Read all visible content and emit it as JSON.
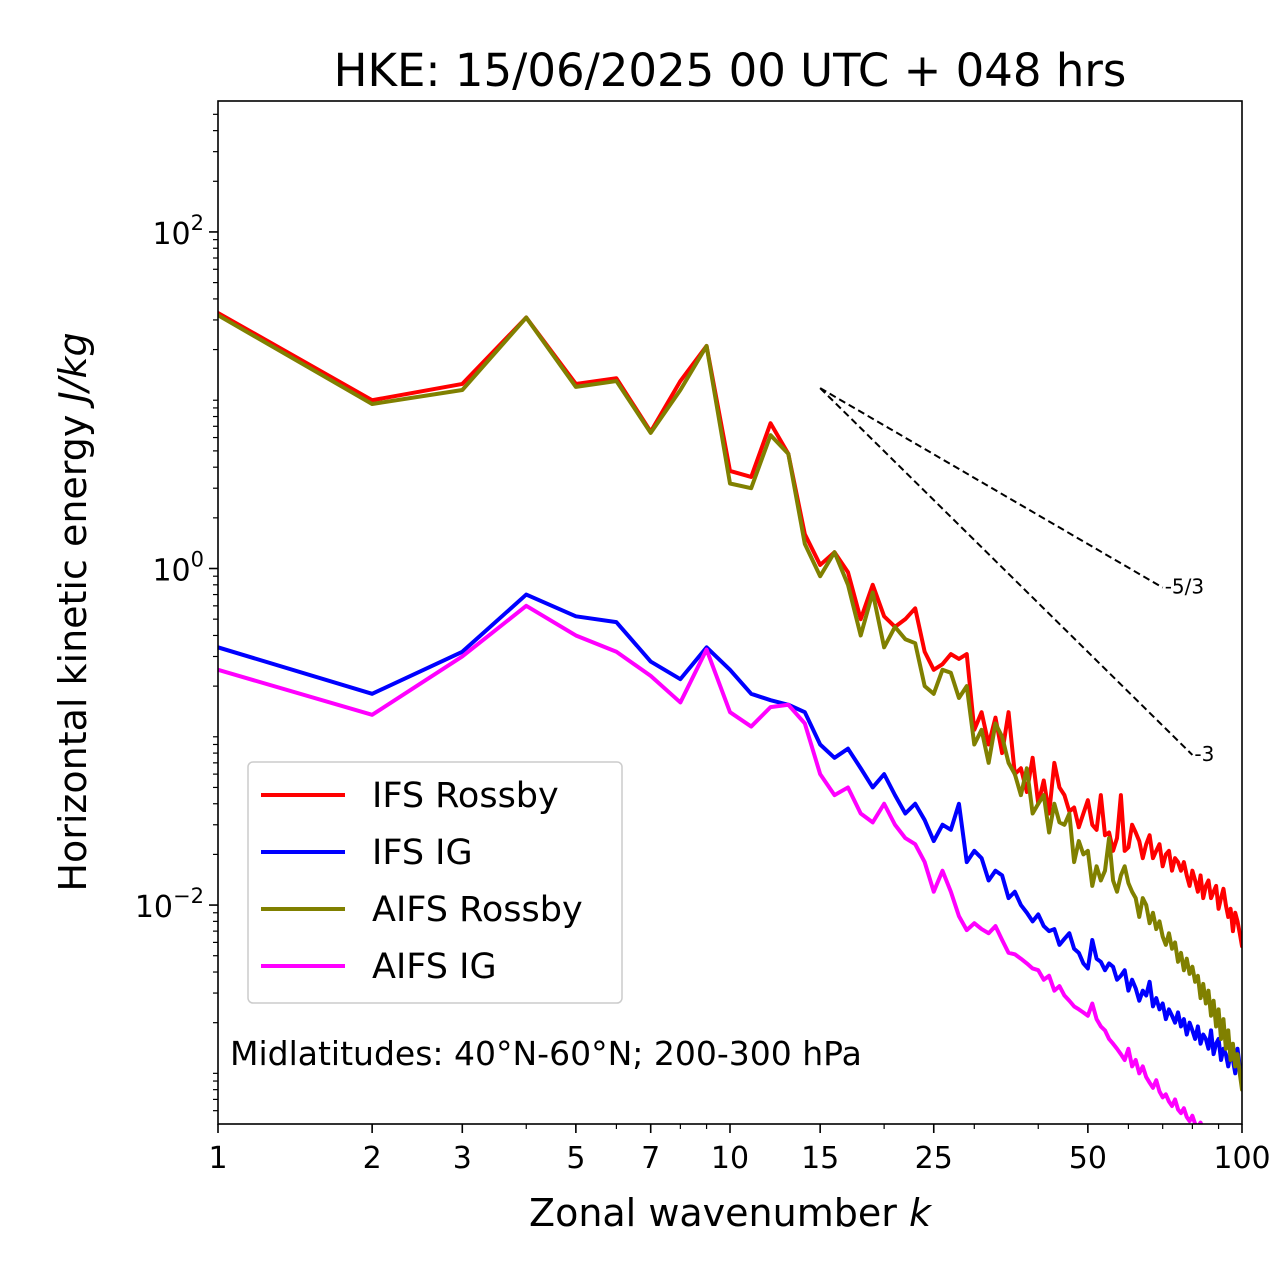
{
  "chart_data": {
    "type": "line",
    "title": "HKE: 15/06/2025 00 UTC + 048 hrs",
    "xlabel": "Zonal wavenumber",
    "xlabel_var": "k",
    "ylabel": "Horizontal kinetic energy",
    "ylabel_unit": "J/kg",
    "xscale": "log",
    "yscale": "log",
    "xlim": [
      1,
      100
    ],
    "ylim": [
      0.0005,
      600
    ],
    "x_ticks": [
      1,
      2,
      3,
      5,
      7,
      10,
      15,
      25,
      50,
      100
    ],
    "x_tick_labels": [
      "1",
      "2",
      "3",
      "5",
      "7",
      "10",
      "15",
      "25",
      "50",
      "100"
    ],
    "y_ticks": [
      {
        "value": 100,
        "base": "10",
        "exp": "2"
      },
      {
        "value": 1,
        "base": "10",
        "exp": "0"
      },
      {
        "value": 0.01,
        "base": "10",
        "exp": "−2"
      }
    ],
    "grid": false,
    "legend_position": "lower-left",
    "annotation": "Midlatitudes: 40°N-60°N; 200-300 hPa",
    "reference_lines": [
      {
        "label": "-5/3",
        "x": [
          15,
          70
        ],
        "y": [
          11.8,
          0.77
        ]
      },
      {
        "label": "-3",
        "x": [
          15,
          80
        ],
        "y": [
          11.8,
          0.078
        ]
      }
    ],
    "series": [
      {
        "name": "IFS Rossby",
        "color": "#ff0000",
        "x": [
          1,
          2,
          3,
          4,
          5,
          6,
          7,
          8,
          9,
          10,
          11,
          12,
          13,
          14,
          15,
          16,
          17,
          18,
          19,
          20,
          21,
          22,
          23,
          24,
          25,
          26,
          27,
          28,
          29,
          30,
          31,
          32,
          33,
          34,
          35,
          36,
          37,
          38,
          39,
          40,
          41,
          42,
          43,
          44,
          45,
          46,
          47,
          48,
          49,
          50,
          51,
          52,
          53,
          54,
          55,
          56,
          57,
          58,
          59,
          60,
          61,
          62,
          63,
          64,
          65,
          66,
          67,
          68,
          69,
          70,
          71,
          72,
          73,
          74,
          75,
          76,
          77,
          78,
          79,
          80,
          81,
          82,
          83,
          84,
          85,
          86,
          87,
          88,
          89,
          90,
          91,
          92,
          93,
          94,
          95,
          96,
          97,
          98,
          99,
          100
        ],
        "y": [
          33,
          10,
          12.5,
          31,
          12.5,
          13.5,
          6.5,
          13,
          21,
          3.8,
          3.5,
          7.3,
          4.8,
          1.6,
          1.05,
          1.25,
          0.95,
          0.5,
          0.8,
          0.52,
          0.45,
          0.5,
          0.58,
          0.32,
          0.25,
          0.27,
          0.31,
          0.29,
          0.31,
          0.11,
          0.14,
          0.09,
          0.13,
          0.08,
          0.14,
          0.06,
          0.065,
          0.047,
          0.075,
          0.04,
          0.055,
          0.035,
          0.07,
          0.05,
          0.045,
          0.036,
          0.038,
          0.029,
          0.035,
          0.042,
          0.03,
          0.028,
          0.045,
          0.026,
          0.027,
          0.021,
          0.025,
          0.045,
          0.021,
          0.022,
          0.03,
          0.027,
          0.024,
          0.019,
          0.023,
          0.026,
          0.019,
          0.021,
          0.023,
          0.017,
          0.02,
          0.021,
          0.016,
          0.019,
          0.018,
          0.016,
          0.018,
          0.015,
          0.013,
          0.016,
          0.014,
          0.012,
          0.015,
          0.011,
          0.013,
          0.014,
          0.011,
          0.012,
          0.013,
          0.0095,
          0.011,
          0.0125,
          0.01,
          0.0085,
          0.0095,
          0.007,
          0.009,
          0.008,
          0.0068,
          0.0057
        ]
      },
      {
        "name": "IFS IG",
        "color": "#0000ff",
        "x": [
          1,
          2,
          3,
          4,
          5,
          6,
          7,
          8,
          9,
          10,
          11,
          12,
          13,
          14,
          15,
          16,
          17,
          18,
          19,
          20,
          21,
          22,
          23,
          24,
          25,
          26,
          27,
          28,
          29,
          30,
          31,
          32,
          33,
          34,
          35,
          36,
          37,
          38,
          39,
          40,
          41,
          42,
          43,
          44,
          45,
          46,
          47,
          48,
          49,
          50,
          51,
          52,
          53,
          54,
          55,
          56,
          57,
          58,
          59,
          60,
          61,
          62,
          63,
          64,
          65,
          66,
          67,
          68,
          69,
          70,
          71,
          72,
          73,
          74,
          75,
          76,
          77,
          78,
          79,
          80,
          81,
          82,
          83,
          84,
          85,
          86,
          87,
          88,
          89,
          90,
          91,
          92,
          93,
          94,
          95,
          96,
          97,
          98,
          99,
          100
        ],
        "y": [
          0.34,
          0.18,
          0.32,
          0.7,
          0.52,
          0.48,
          0.28,
          0.22,
          0.34,
          0.25,
          0.18,
          0.165,
          0.155,
          0.14,
          0.09,
          0.075,
          0.085,
          0.065,
          0.05,
          0.06,
          0.045,
          0.035,
          0.04,
          0.032,
          0.024,
          0.03,
          0.028,
          0.04,
          0.018,
          0.021,
          0.019,
          0.014,
          0.016,
          0.015,
          0.011,
          0.012,
          0.01,
          0.009,
          0.008,
          0.0088,
          0.0075,
          0.007,
          0.0072,
          0.0058,
          0.0063,
          0.0068,
          0.0055,
          0.0052,
          0.0045,
          0.0042,
          0.0062,
          0.0048,
          0.0046,
          0.0041,
          0.0045,
          0.0043,
          0.0036,
          0.0038,
          0.0041,
          0.0031,
          0.0036,
          0.0032,
          0.0027,
          0.0031,
          0.0029,
          0.0035,
          0.0025,
          0.0028,
          0.0024,
          0.0026,
          0.0021,
          0.0024,
          0.0022,
          0.002,
          0.0023,
          0.0019,
          0.0021,
          0.0017,
          0.002,
          0.0018,
          0.0016,
          0.0019,
          0.0015,
          0.0017,
          0.0016,
          0.0014,
          0.0018,
          0.0013,
          0.0015,
          0.0016,
          0.0012,
          0.0014,
          0.0013,
          0.0011,
          0.0013,
          0.0012,
          0.001,
          0.0014,
          0.0011,
          0.0009
        ]
      },
      {
        "name": "AIFS Rossby",
        "color": "#808000",
        "x": [
          1,
          2,
          3,
          4,
          5,
          6,
          7,
          8,
          9,
          10,
          11,
          12,
          13,
          14,
          15,
          16,
          17,
          18,
          19,
          20,
          21,
          22,
          23,
          24,
          25,
          26,
          27,
          28,
          29,
          30,
          31,
          32,
          33,
          34,
          35,
          36,
          37,
          38,
          39,
          40,
          41,
          42,
          43,
          44,
          45,
          46,
          47,
          48,
          49,
          50,
          51,
          52,
          53,
          54,
          55,
          56,
          57,
          58,
          59,
          60,
          61,
          62,
          63,
          64,
          65,
          66,
          67,
          68,
          69,
          70,
          71,
          72,
          73,
          74,
          75,
          76,
          77,
          78,
          79,
          80,
          81,
          82,
          83,
          84,
          85,
          86,
          87,
          88,
          89,
          90,
          91,
          92,
          93,
          94,
          95,
          96,
          97,
          98,
          99,
          100
        ],
        "y": [
          32,
          9.5,
          11.5,
          31,
          12,
          13,
          6.4,
          11.5,
          21,
          3.2,
          3,
          6.2,
          4.8,
          1.4,
          0.9,
          1.25,
          0.8,
          0.4,
          0.72,
          0.34,
          0.45,
          0.38,
          0.36,
          0.2,
          0.18,
          0.25,
          0.24,
          0.17,
          0.2,
          0.09,
          0.11,
          0.07,
          0.12,
          0.1,
          0.07,
          0.06,
          0.045,
          0.065,
          0.035,
          0.04,
          0.045,
          0.027,
          0.04,
          0.031,
          0.03,
          0.035,
          0.018,
          0.024,
          0.02,
          0.021,
          0.013,
          0.017,
          0.014,
          0.016,
          0.025,
          0.014,
          0.012,
          0.015,
          0.017,
          0.0135,
          0.012,
          0.011,
          0.0085,
          0.011,
          0.01,
          0.0078,
          0.009,
          0.0072,
          0.008,
          0.0065,
          0.0058,
          0.0068,
          0.0055,
          0.006,
          0.0046,
          0.0052,
          0.0041,
          0.0048,
          0.0039,
          0.0043,
          0.0035,
          0.0038,
          0.0028,
          0.0034,
          0.0026,
          0.0031,
          0.0022,
          0.0027,
          0.0019,
          0.0024,
          0.0016,
          0.0021,
          0.0014,
          0.0018,
          0.0012,
          0.0015,
          0.0011,
          0.0013,
          0.001,
          0.0008
        ]
      },
      {
        "name": "AIFS IG",
        "color": "#ff00ff",
        "x": [
          1,
          2,
          3,
          4,
          5,
          6,
          7,
          8,
          9,
          10,
          11,
          12,
          13,
          14,
          15,
          16,
          17,
          18,
          19,
          20,
          21,
          22,
          23,
          24,
          25,
          26,
          27,
          28,
          29,
          30,
          31,
          32,
          33,
          34,
          35,
          36,
          37,
          38,
          39,
          40,
          41,
          42,
          43,
          44,
          45,
          46,
          47,
          48,
          49,
          50,
          51,
          52,
          53,
          54,
          55,
          56,
          57,
          58,
          59,
          60,
          61,
          62,
          63,
          64,
          65,
          66,
          67,
          68,
          69,
          70,
          71,
          72,
          73,
          74,
          75,
          76,
          77,
          78,
          79,
          80,
          81,
          82,
          83,
          84,
          85,
          86,
          87,
          88,
          89,
          90,
          91,
          92,
          93,
          94,
          95,
          96,
          97,
          98,
          99,
          100
        ],
        "y": [
          0.25,
          0.135,
          0.3,
          0.6,
          0.4,
          0.32,
          0.23,
          0.16,
          0.33,
          0.14,
          0.115,
          0.15,
          0.155,
          0.12,
          0.06,
          0.045,
          0.05,
          0.035,
          0.031,
          0.04,
          0.03,
          0.025,
          0.023,
          0.018,
          0.012,
          0.016,
          0.012,
          0.0086,
          0.0071,
          0.0078,
          0.0072,
          0.0068,
          0.0075,
          0.0062,
          0.0052,
          0.0051,
          0.0048,
          0.0045,
          0.0042,
          0.0041,
          0.0036,
          0.0038,
          0.0031,
          0.0033,
          0.0029,
          0.0027,
          0.0025,
          0.0024,
          0.0023,
          0.0022,
          0.0026,
          0.0021,
          0.0019,
          0.0018,
          0.0016,
          0.0015,
          0.0014,
          0.0013,
          0.0012,
          0.0014,
          0.0011,
          0.0012,
          0.001,
          0.0011,
          0.00095,
          0.00088,
          0.00082,
          0.00091,
          0.00078,
          0.00072,
          0.00075,
          0.00068,
          0.00064,
          0.0007,
          0.00061,
          0.00058,
          0.00062,
          0.00055,
          0.00052,
          0.00056,
          0.0005,
          0.00048,
          0.00051,
          0.00046,
          0.00044,
          0.00047,
          0.00042,
          0.0004,
          0.00043,
          0.00039,
          0.00037,
          0.0004,
          0.00036,
          0.00034,
          0.00037,
          0.00033,
          0.00031,
          0.00034,
          0.0003,
          0.00029
        ]
      }
    ]
  }
}
